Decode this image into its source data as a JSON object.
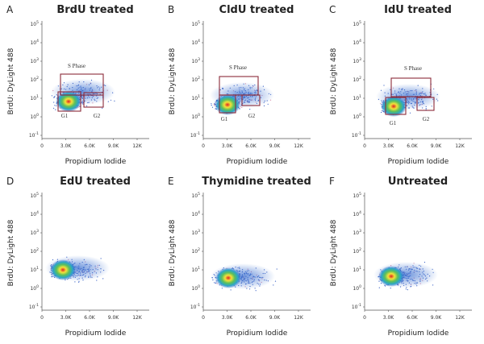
{
  "panels": [
    {
      "letter": "A",
      "title": "BrdU treated",
      "x_label": "Propidium Iodide",
      "y_label": "BrdU: DyLight 488",
      "gates": [
        "S Phase",
        "G1",
        "G2"
      ]
    },
    {
      "letter": "B",
      "title": "CldU treated",
      "x_label": "Propidium Iodide",
      "y_label": "BrdU: DyLight 488",
      "gates": [
        "S Phase",
        "G1",
        "G2"
      ]
    },
    {
      "letter": "C",
      "title": "IdU treated",
      "x_label": "Propidium Iodide",
      "y_label": "BrdU: DyLight 488",
      "gates": [
        "S Phase",
        "G1",
        "G2"
      ]
    },
    {
      "letter": "D",
      "title": "EdU treated",
      "x_label": "Propidium Iodide",
      "y_label": "BrdU: DyLight 488",
      "gates": []
    },
    {
      "letter": "E",
      "title": "Thymidine treated",
      "x_label": "Propidium Iodide",
      "y_label": "BrdU: DyLight 488",
      "gates": []
    },
    {
      "letter": "F",
      "title": "Untreated",
      "x_label": "Propidium Iodide",
      "y_label": "BrdU: DyLight 488",
      "gates": []
    }
  ],
  "x_ticks": [
    "0",
    "3.0K",
    "6.0K",
    "9.0K",
    "12K"
  ],
  "y_ticks": [
    {
      "base": "10",
      "exp": "5"
    },
    {
      "base": "10",
      "exp": "4"
    },
    {
      "base": "10",
      "exp": "3"
    },
    {
      "base": "10",
      "exp": "2"
    },
    {
      "base": "10",
      "exp": "1"
    },
    {
      "base": "10",
      "exp": "0"
    },
    {
      "base": "10",
      "exp": "-1"
    }
  ]
}
